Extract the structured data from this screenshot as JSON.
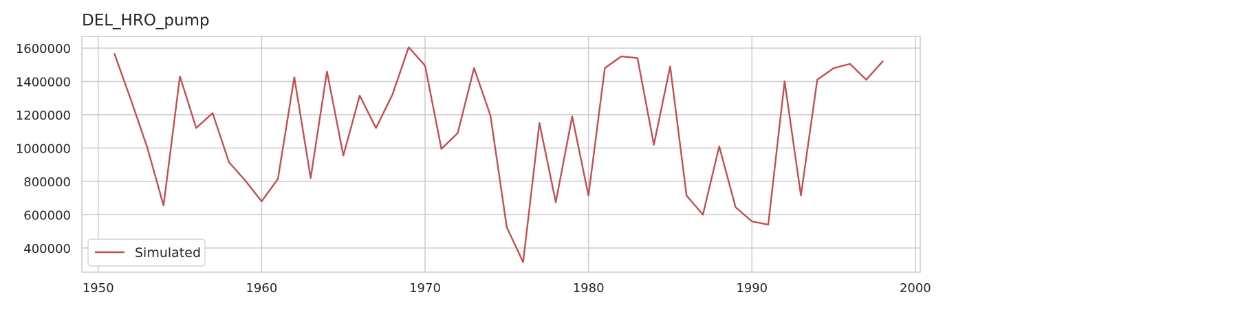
{
  "chart_data": {
    "type": "line",
    "title": "DEL_HRO_pump",
    "xlabel": "",
    "ylabel": "",
    "xlim": [
      1949,
      2000.3
    ],
    "ylim": [
      255000,
      1670000
    ],
    "xticks": [
      1950,
      1960,
      1970,
      1980,
      1990,
      2000
    ],
    "yticks": [
      400000,
      600000,
      800000,
      1000000,
      1200000,
      1400000,
      1600000
    ],
    "grid": true,
    "legend_position": "bottom-left",
    "series": [
      {
        "name": "Simulated",
        "color": "#c44e52",
        "x": [
          1951,
          1952,
          1953,
          1954,
          1955,
          1956,
          1957,
          1958,
          1959,
          1960,
          1961,
          1962,
          1963,
          1964,
          1965,
          1966,
          1967,
          1968,
          1969,
          1970,
          1971,
          1972,
          1973,
          1974,
          1975,
          1976,
          1977,
          1978,
          1979,
          1980,
          1981,
          1982,
          1983,
          1984,
          1985,
          1986,
          1987,
          1988,
          1989,
          1990,
          1991,
          1992,
          1993,
          1994,
          1995,
          1996,
          1997,
          1998
        ],
        "values": [
          1565000,
          1290000,
          1005000,
          655000,
          1430000,
          1120000,
          1210000,
          915000,
          805000,
          680000,
          815000,
          1425000,
          820000,
          1460000,
          955000,
          1315000,
          1120000,
          1320000,
          1605000,
          1495000,
          995000,
          1090000,
          1480000,
          1195000,
          525000,
          315000,
          1150000,
          675000,
          1190000,
          715000,
          1480000,
          1550000,
          1540000,
          1020000,
          1490000,
          715000,
          600000,
          1010000,
          645000,
          560000,
          540000,
          1400000,
          715000,
          1410000,
          1480000,
          1505000,
          1410000,
          1520000
        ]
      }
    ]
  }
}
